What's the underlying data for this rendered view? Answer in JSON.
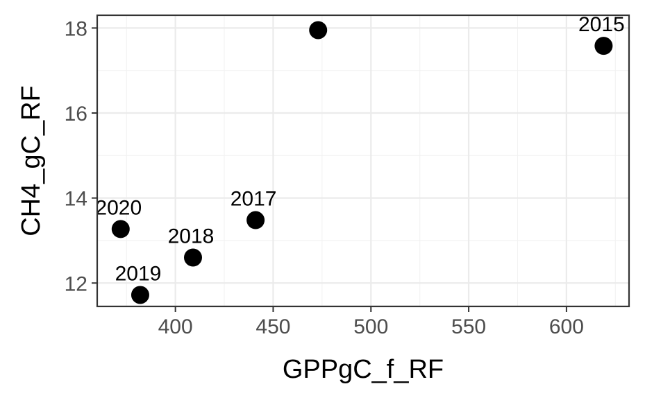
{
  "chart_data": {
    "type": "scatter",
    "xlabel": "GPPgC_f_RF",
    "ylabel": "CH4_gC_RF",
    "xlim": [
      360,
      632
    ],
    "ylim": [
      11.45,
      18.3
    ],
    "x_major_ticks": [
      400,
      450,
      500,
      550,
      600
    ],
    "x_minor_ticks": [
      375,
      425,
      475,
      525,
      575,
      625
    ],
    "y_major_ticks": [
      12,
      14,
      16,
      18
    ],
    "y_minor_ticks": [
      13,
      15,
      17
    ],
    "grid": true,
    "legend": "none",
    "point_color": "#000000",
    "points": [
      {
        "x": 473,
        "y": 17.95,
        "label": ""
      },
      {
        "x": 619,
        "y": 17.58,
        "label": "2015"
      },
      {
        "x": 441,
        "y": 13.48,
        "label": "2017"
      },
      {
        "x": 409,
        "y": 12.6,
        "label": "2018"
      },
      {
        "x": 382,
        "y": 11.72,
        "label": "2019"
      },
      {
        "x": 372,
        "y": 13.27,
        "label": "2020"
      }
    ]
  }
}
